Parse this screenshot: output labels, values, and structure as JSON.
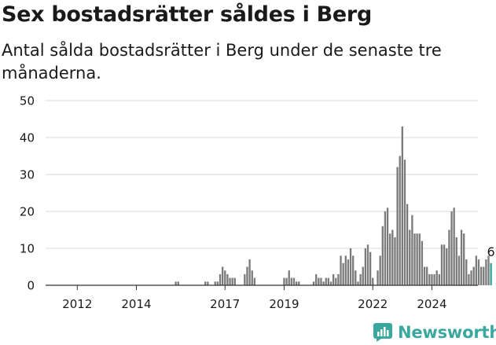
{
  "title": "Sex bostadsrätter såldes i Berg",
  "subtitle": "Antal sålda bostadsrätter i Berg under de senaste tre månaderna.",
  "brand": {
    "name": "Newsworthy",
    "logo_icon": "newsworthy-logo-icon"
  },
  "colors": {
    "bar": "#7a7a7a",
    "highlight": "#2fa39a",
    "grid": "#d9d9d9",
    "axis": "#333333",
    "text": "#1a1a1a"
  },
  "chart_data": {
    "type": "bar",
    "x_unit": "month",
    "start": "2011-01",
    "end": "2024-10",
    "ylim": [
      0,
      50
    ],
    "yticks": [
      0,
      10,
      20,
      30,
      40,
      50
    ],
    "xticks": [
      "2012",
      "2014",
      "2017",
      "2019",
      "2022",
      "2024"
    ],
    "grid": true,
    "highlight_last": true,
    "last_label": "6",
    "values": [
      0,
      0,
      0,
      0,
      0,
      0,
      0,
      0,
      0,
      0,
      0,
      0,
      0,
      0,
      0,
      0,
      0,
      0,
      0,
      0,
      0,
      0,
      0,
      0,
      0,
      0,
      0,
      0,
      0,
      0,
      0,
      0,
      0,
      0,
      0,
      0,
      0,
      0,
      0,
      0,
      0,
      0,
      0,
      0,
      0,
      0,
      0,
      0,
      0,
      0,
      0,
      0,
      1,
      1,
      0,
      0,
      0,
      0,
      0,
      0,
      0,
      0,
      0,
      0,
      1,
      1,
      0,
      0,
      1,
      1,
      3,
      5,
      4,
      3,
      2,
      2,
      2,
      0,
      0,
      0,
      3,
      5,
      7,
      4,
      2,
      0,
      0,
      0,
      0,
      0,
      0,
      0,
      0,
      0,
      0,
      0,
      2,
      2,
      4,
      2,
      2,
      1,
      1,
      0,
      0,
      0,
      0,
      0,
      1,
      3,
      2,
      2,
      1,
      2,
      2,
      1,
      3,
      2,
      3,
      8,
      6,
      8,
      7,
      10,
      8,
      4,
      1,
      3,
      5,
      10,
      11,
      9,
      2,
      0,
      4,
      8,
      16,
      20,
      21,
      14,
      15,
      13,
      32,
      35,
      43,
      34,
      22,
      15,
      19,
      14,
      14,
      14,
      12,
      5,
      5,
      3,
      3,
      3,
      4,
      3,
      11,
      11,
      10,
      15,
      20,
      21,
      13,
      8,
      15,
      14,
      7,
      3,
      4,
      5,
      8,
      7,
      5,
      5,
      7,
      8,
      6
    ]
  }
}
